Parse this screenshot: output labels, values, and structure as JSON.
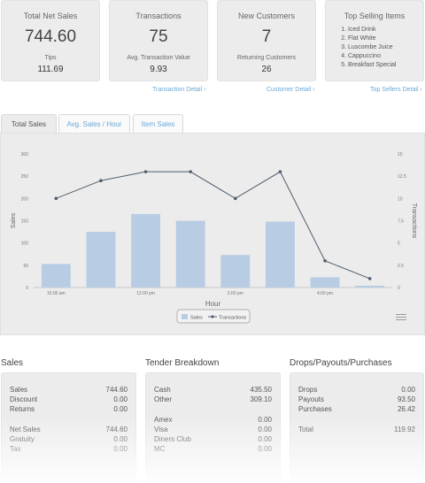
{
  "cards": [
    {
      "title": "Total Net Sales",
      "big": "744.60",
      "sub": "Tips",
      "value": "111.69"
    },
    {
      "title": "Transactions",
      "big": "75",
      "sub": "Avg. Transaction Value",
      "value": "9.93"
    },
    {
      "title": "New Customers",
      "big": "7",
      "sub": "Returning Customers",
      "value": "26"
    }
  ],
  "top_selling": {
    "title": "Top Selling Items",
    "items": [
      "Iced Drink",
      "Flat White",
      "Luscombe Juice",
      "Cappuccino",
      "Breakfast Special"
    ]
  },
  "links": {
    "transaction": "Transaction Detail ›",
    "customer": "Customer Detail ›",
    "top_sellers": "Top Sellers Detail ›"
  },
  "tabs": [
    "Total Sales",
    "Avg. Sales / Hour",
    "Item Sales"
  ],
  "chart_data": {
    "type": "bar",
    "categories": [
      "10:00 am",
      "11:00 am",
      "12:00 pm",
      "1:00 pm",
      "2:00 pm",
      "3:00 pm",
      "4:00 pm",
      "5:00 pm"
    ],
    "x_tick_labels": [
      "10:00 am",
      "12:00 pm",
      "2:00 pm",
      "4:00 pm"
    ],
    "series": [
      {
        "name": "Sales",
        "type": "bar",
        "values": [
          53,
          125,
          165,
          150,
          73,
          148,
          23,
          4
        ]
      },
      {
        "name": "Transactions",
        "type": "line",
        "values": [
          10,
          12,
          13,
          13,
          10,
          13,
          3,
          1
        ]
      }
    ],
    "xlabel": "Hour",
    "ylabel": "Sales",
    "y2label": "Transactions",
    "ylim": [
      0,
      300
    ],
    "y_ticks": [
      "0",
      "50",
      "100",
      "150",
      "200",
      "250",
      "300"
    ],
    "y2lim": [
      0,
      15
    ],
    "y2_ticks": [
      "0",
      "2.5",
      "5",
      "7.5",
      "10",
      "12.5",
      "15"
    ],
    "legend_position": "bottom",
    "colors": {
      "bar": "#b8cde3",
      "line": "#4f5d6e"
    }
  },
  "sections": {
    "sales": {
      "title": "Sales",
      "rows": [
        {
          "label": "Sales",
          "value": "744.60"
        },
        {
          "label": "Discount",
          "value": "0.00"
        },
        {
          "label": "Returns",
          "value": "0.00"
        },
        {
          "label": "Net Sales",
          "value": "744.60"
        },
        {
          "label": "Gratuity",
          "value": "0.00"
        },
        {
          "label": "Tax",
          "value": "0.00"
        }
      ]
    },
    "tender": {
      "title": "Tender Breakdown",
      "rows": [
        {
          "label": "Cash",
          "value": "435.50"
        },
        {
          "label": "Other",
          "value": "309.10"
        },
        {
          "label": "Amex",
          "value": "0.00"
        },
        {
          "label": "Visa",
          "value": "0.00"
        },
        {
          "label": "Diners Club",
          "value": "0.00"
        },
        {
          "label": "MC",
          "value": "0.00"
        }
      ]
    },
    "drops": {
      "title": "Drops/Payouts/Purchases",
      "rows": [
        {
          "label": "Drops",
          "value": "0.00"
        },
        {
          "label": "Payouts",
          "value": "93.50"
        },
        {
          "label": "Purchases",
          "value": "26.42"
        },
        {
          "label": "Total",
          "value": "119.92"
        }
      ]
    }
  }
}
